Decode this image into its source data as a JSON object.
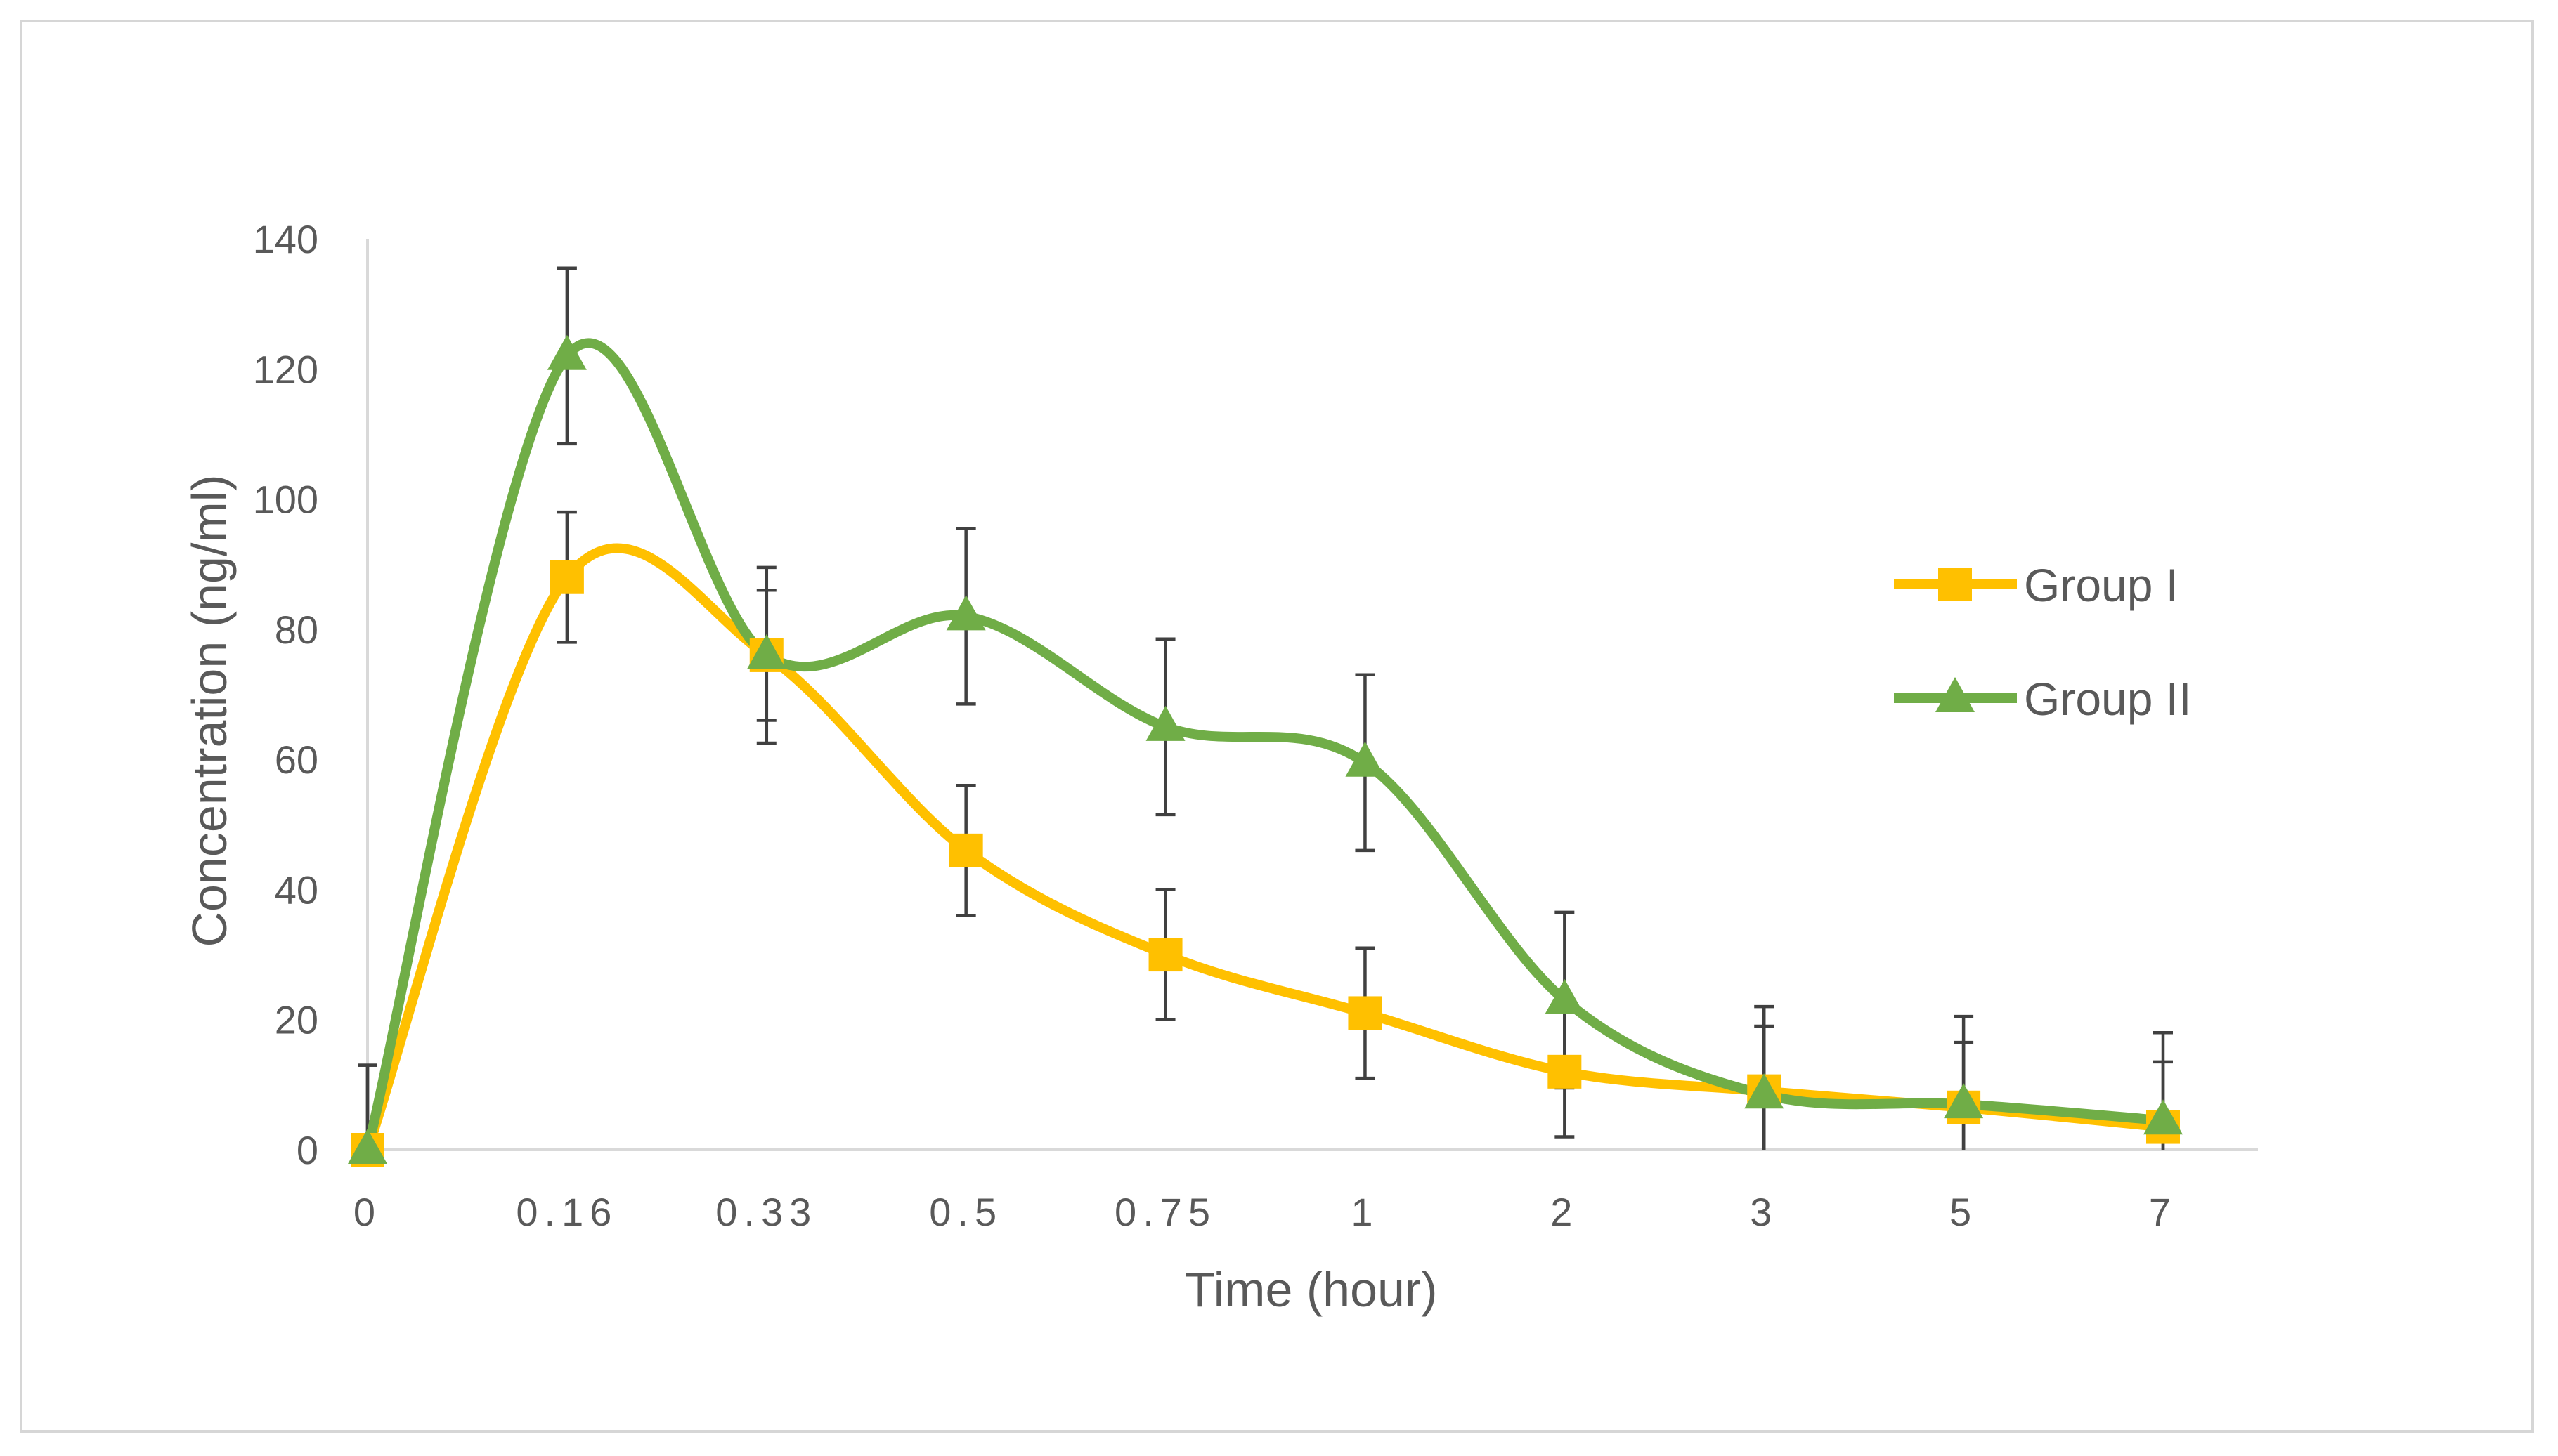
{
  "chart_data": {
    "type": "line",
    "title": "",
    "xlabel": "Time (hour)",
    "ylabel": "Concentration (ng/ml)",
    "categories": [
      "0",
      "0.16",
      "0.33",
      "0.5",
      "0.75",
      "1",
      "2",
      "3",
      "5",
      "7"
    ],
    "ylim": [
      0,
      140
    ],
    "yticks": [
      0,
      20,
      40,
      60,
      80,
      100,
      120,
      140
    ],
    "grid": false,
    "legend_position": "right",
    "smooth": true,
    "series": [
      {
        "name": "Group I",
        "color": "#ffc000",
        "marker": "square",
        "values": [
          0,
          88,
          76,
          46,
          30,
          21,
          12,
          9,
          6.5,
          3.5
        ],
        "error": [
          13,
          10,
          10,
          10,
          10,
          10,
          10,
          10,
          10,
          10
        ]
      },
      {
        "name": "Group II",
        "color": "#70ad47",
        "marker": "triangle",
        "values": [
          0,
          122,
          76,
          82,
          65,
          59.5,
          23,
          8.5,
          7,
          4.5
        ],
        "error": [
          13,
          13.5,
          13.5,
          13.5,
          13.5,
          13.5,
          13.5,
          13.5,
          13.5,
          13.5
        ]
      }
    ]
  }
}
